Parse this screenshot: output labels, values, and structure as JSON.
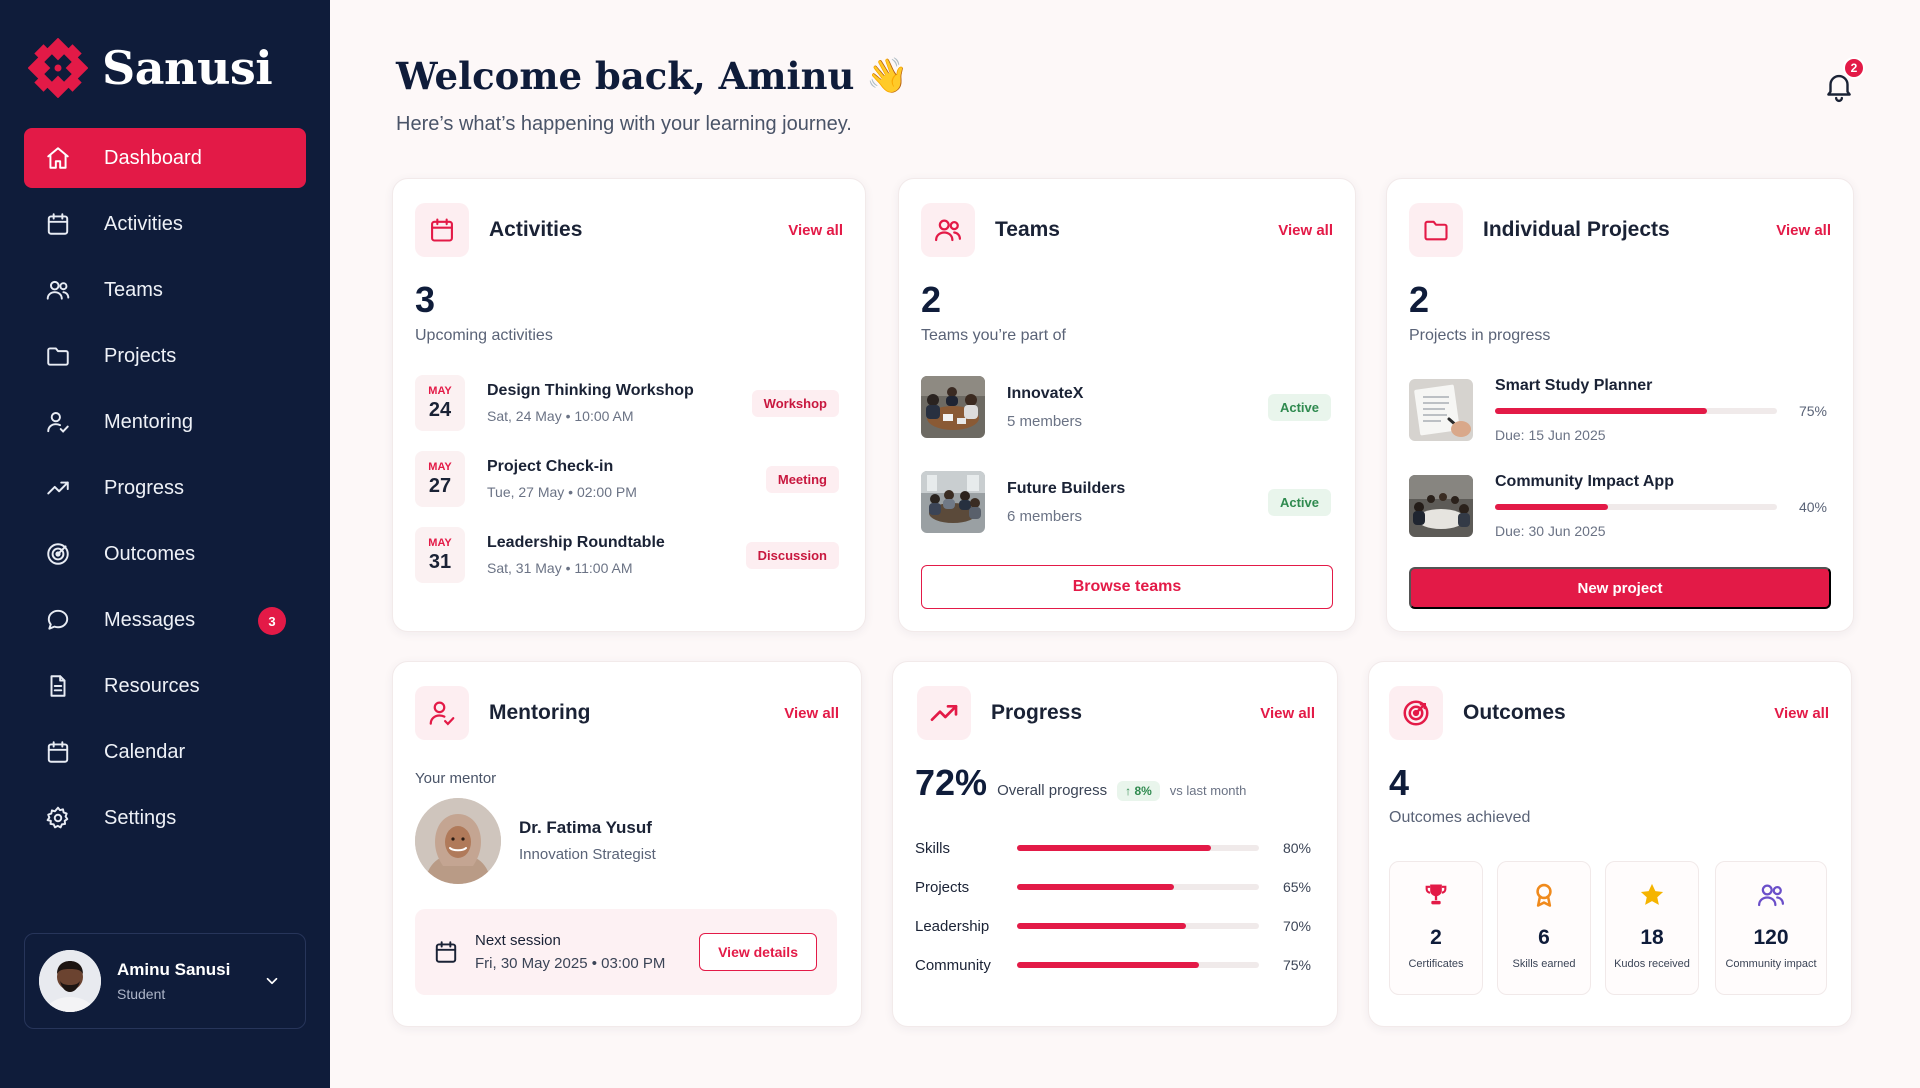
{
  "brand": {
    "name": "Sanusi",
    "accent": "#e31a47",
    "sidebar_bg": "#0f1c3a"
  },
  "sidebar": {
    "items": [
      {
        "label": "Dashboard",
        "icon": "home-icon",
        "active": true
      },
      {
        "label": "Activities",
        "icon": "calendar-icon"
      },
      {
        "label": "Teams",
        "icon": "users-icon"
      },
      {
        "label": "Projects",
        "icon": "folder-icon"
      },
      {
        "label": "Mentoring",
        "icon": "mentor-icon"
      },
      {
        "label": "Progress",
        "icon": "trend-icon"
      },
      {
        "label": "Outcomes",
        "icon": "target-icon"
      },
      {
        "label": "Messages",
        "icon": "chat-icon",
        "badge": "3"
      },
      {
        "label": "Resources",
        "icon": "document-icon"
      },
      {
        "label": "Calendar",
        "icon": "calendar-icon"
      },
      {
        "label": "Settings",
        "icon": "gear-icon"
      }
    ],
    "user": {
      "name": "Aminu Sanusi",
      "role": "Student"
    }
  },
  "header": {
    "title": "Welcome back, Aminu",
    "emoji": "👋",
    "subtitle": "Here’s what’s happening with your learning journey.",
    "notifications": "2"
  },
  "activities": {
    "title": "Activities",
    "view_all": "View all",
    "count": "3",
    "caption": "Upcoming activities",
    "items": [
      {
        "month": "MAY",
        "day": "24",
        "name": "Design Thinking Workshop",
        "when": "Sat, 24 May • 10:00 AM",
        "tag": "Workshop"
      },
      {
        "month": "MAY",
        "day": "27",
        "name": "Project Check-in",
        "when": "Tue, 27 May • 02:00 PM",
        "tag": "Meeting"
      },
      {
        "month": "MAY",
        "day": "31",
        "name": "Leadership Roundtable",
        "when": "Sat, 31 May • 11:00 AM",
        "tag": "Discussion"
      }
    ]
  },
  "teams": {
    "title": "Teams",
    "view_all": "View all",
    "count": "2",
    "caption": "Teams you’re part of",
    "items": [
      {
        "name": "InnovateX",
        "members": "5 members",
        "status": "Active"
      },
      {
        "name": "Future Builders",
        "members": "6 members",
        "status": "Active"
      }
    ],
    "button": "Browse teams"
  },
  "projects": {
    "title": "Individual Projects",
    "view_all": "View all",
    "count": "2",
    "caption": "Projects in progress",
    "items": [
      {
        "name": "Smart Study Planner",
        "progress": 75,
        "pct_label": "75%",
        "due": "Due: 15 Jun 2025"
      },
      {
        "name": "Community Impact App",
        "progress": 40,
        "pct_label": "40%",
        "due": "Due: 30 Jun 2025"
      }
    ],
    "button": "New project"
  },
  "mentoring": {
    "title": "Mentoring",
    "view_all": "View all",
    "caption": "Your mentor",
    "mentor_name": "Dr. Fatima Yusuf",
    "mentor_role": "Innovation Strategist",
    "session_label": "Next session",
    "session_when": "Fri, 30 May 2025 • 03:00 PM",
    "button": "View details"
  },
  "progress": {
    "title": "Progress",
    "view_all": "View all",
    "overall": "72%",
    "overall_label": "Overall progress",
    "delta": "↑ 8%",
    "delta_caption": "vs last month",
    "items": [
      {
        "name": "Skills",
        "value": 80,
        "label": "80%"
      },
      {
        "name": "Projects",
        "value": 65,
        "label": "65%"
      },
      {
        "name": "Leadership",
        "value": 70,
        "label": "70%"
      },
      {
        "name": "Community",
        "value": 75,
        "label": "75%"
      }
    ]
  },
  "outcomes": {
    "title": "Outcomes",
    "view_all": "View all",
    "count": "4",
    "caption": "Outcomes achieved",
    "stats": [
      {
        "icon": "trophy-icon",
        "value": "2",
        "label": "Certificates",
        "color": "#e31a47"
      },
      {
        "icon": "award-icon",
        "value": "6",
        "label": "Skills earned",
        "color": "#f08a1c"
      },
      {
        "icon": "star-icon",
        "value": "18",
        "label": "Kudos received",
        "color": "#f5b400"
      },
      {
        "icon": "community-icon",
        "value": "120",
        "label": "Community impact",
        "color": "#6b4fc9"
      }
    ]
  }
}
